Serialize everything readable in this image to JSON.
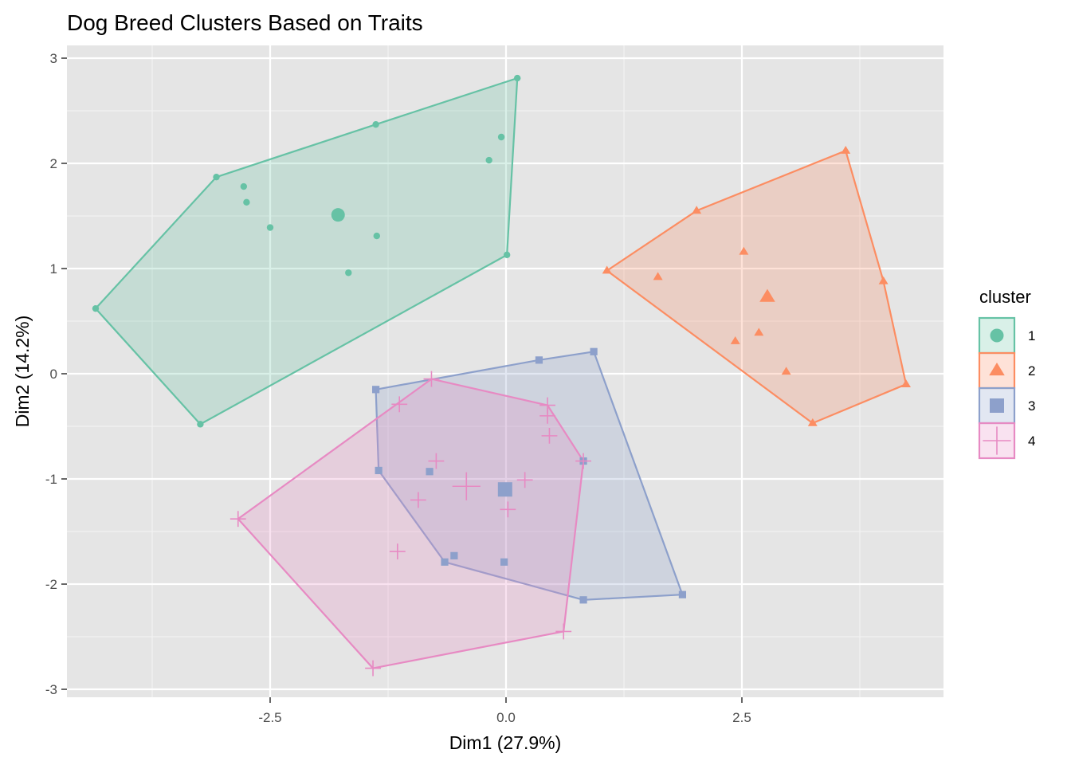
{
  "chart_data": {
    "type": "scatter",
    "title": "Dog Breed Clusters Based on Traits",
    "xlabel": "Dim1 (27.9%)",
    "ylabel": "Dim2 (14.2%)",
    "xlim": [
      -4.7,
      4.6
    ],
    "ylim": [
      -3.05,
      3.05
    ],
    "x_ticks": [
      -2.5,
      0.0,
      2.5
    ],
    "x_tick_labels": [
      "-2.5",
      "0.0",
      "2.5"
    ],
    "y_ticks": [
      -3,
      -2,
      -1,
      0,
      1,
      2,
      3
    ],
    "y_tick_labels": [
      "-3",
      "-2",
      "-1",
      "0",
      "1",
      "2",
      "3"
    ],
    "grid": true,
    "legend": {
      "title": "cluster",
      "position": "right"
    },
    "series": [
      {
        "name": "1",
        "color": "#66c2a5",
        "shape": "circle",
        "points": [
          {
            "x": 0.12,
            "y": 2.81
          },
          {
            "x": -1.38,
            "y": 2.37
          },
          {
            "x": -3.07,
            "y": 1.87
          },
          {
            "x": -4.35,
            "y": 0.62
          },
          {
            "x": -3.24,
            "y": -0.48
          },
          {
            "x": 0.01,
            "y": 1.13
          },
          {
            "x": -0.05,
            "y": 2.25
          },
          {
            "x": -0.18,
            "y": 2.03
          },
          {
            "x": -2.78,
            "y": 1.78
          },
          {
            "x": -2.75,
            "y": 1.63
          },
          {
            "x": -2.5,
            "y": 1.39
          },
          {
            "x": -1.37,
            "y": 1.31
          },
          {
            "x": -1.67,
            "y": 0.96
          }
        ],
        "hull": [
          {
            "x": 0.12,
            "y": 2.81
          },
          {
            "x": -1.38,
            "y": 2.37
          },
          {
            "x": -3.07,
            "y": 1.87
          },
          {
            "x": -4.35,
            "y": 0.62
          },
          {
            "x": -3.24,
            "y": -0.48
          },
          {
            "x": 0.01,
            "y": 1.13
          }
        ],
        "center": {
          "x": -1.78,
          "y": 1.51
        }
      },
      {
        "name": "2",
        "color": "#fc8d62",
        "shape": "triangle",
        "points": [
          {
            "x": 3.6,
            "y": 2.12
          },
          {
            "x": 2.02,
            "y": 1.55
          },
          {
            "x": 1.07,
            "y": 0.98
          },
          {
            "x": 3.25,
            "y": -0.47
          },
          {
            "x": 4.24,
            "y": -0.1
          },
          {
            "x": 4.0,
            "y": 0.88
          },
          {
            "x": 1.61,
            "y": 0.92
          },
          {
            "x": 2.52,
            "y": 1.16
          },
          {
            "x": 2.68,
            "y": 0.39
          },
          {
            "x": 2.43,
            "y": 0.31
          },
          {
            "x": 2.97,
            "y": 0.02
          }
        ],
        "hull": [
          {
            "x": 3.6,
            "y": 2.12
          },
          {
            "x": 2.02,
            "y": 1.55
          },
          {
            "x": 1.07,
            "y": 0.98
          },
          {
            "x": 3.25,
            "y": -0.47
          },
          {
            "x": 4.24,
            "y": -0.1
          },
          {
            "x": 4.0,
            "y": 0.88
          }
        ],
        "center": {
          "x": 2.77,
          "y": 0.73
        }
      },
      {
        "name": "3",
        "color": "#8da0cb",
        "shape": "square",
        "points": [
          {
            "x": 0.93,
            "y": 0.21
          },
          {
            "x": 0.35,
            "y": 0.13
          },
          {
            "x": -1.38,
            "y": -0.15
          },
          {
            "x": -1.35,
            "y": -0.92
          },
          {
            "x": -0.65,
            "y": -1.79
          },
          {
            "x": 0.82,
            "y": -2.15
          },
          {
            "x": 1.87,
            "y": -2.1
          },
          {
            "x": 0.82,
            "y": -0.83
          },
          {
            "x": -0.81,
            "y": -0.93
          },
          {
            "x": -0.55,
            "y": -1.73
          },
          {
            "x": -0.02,
            "y": -1.79
          }
        ],
        "hull": [
          {
            "x": 0.93,
            "y": 0.21
          },
          {
            "x": 0.35,
            "y": 0.13
          },
          {
            "x": -1.38,
            "y": -0.15
          },
          {
            "x": -1.35,
            "y": -0.92
          },
          {
            "x": -0.65,
            "y": -1.79
          },
          {
            "x": 0.82,
            "y": -2.15
          },
          {
            "x": 1.87,
            "y": -2.1
          }
        ],
        "center": {
          "x": -0.01,
          "y": -1.1
        }
      },
      {
        "name": "4",
        "color": "#e78ac3",
        "shape": "plus",
        "points": [
          {
            "x": -0.79,
            "y": -0.05
          },
          {
            "x": 0.44,
            "y": -0.3
          },
          {
            "x": 0.82,
            "y": -0.83
          },
          {
            "x": 0.61,
            "y": -2.45
          },
          {
            "x": -1.41,
            "y": -2.8
          },
          {
            "x": -2.84,
            "y": -1.38
          },
          {
            "x": -1.13,
            "y": -0.29
          },
          {
            "x": 0.44,
            "y": -0.4
          },
          {
            "x": 0.46,
            "y": -0.59
          },
          {
            "x": -0.74,
            "y": -0.83
          },
          {
            "x": 0.2,
            "y": -1.01
          },
          {
            "x": 0.02,
            "y": -1.29
          },
          {
            "x": -0.93,
            "y": -1.2
          },
          {
            "x": -1.15,
            "y": -1.69
          }
        ],
        "hull": [
          {
            "x": -0.79,
            "y": -0.05
          },
          {
            "x": 0.44,
            "y": -0.3
          },
          {
            "x": 0.82,
            "y": -0.83
          },
          {
            "x": 0.61,
            "y": -2.45
          },
          {
            "x": -1.41,
            "y": -2.8
          },
          {
            "x": -2.84,
            "y": -1.38
          }
        ],
        "center": {
          "x": -0.42,
          "y": -1.07
        }
      }
    ]
  }
}
